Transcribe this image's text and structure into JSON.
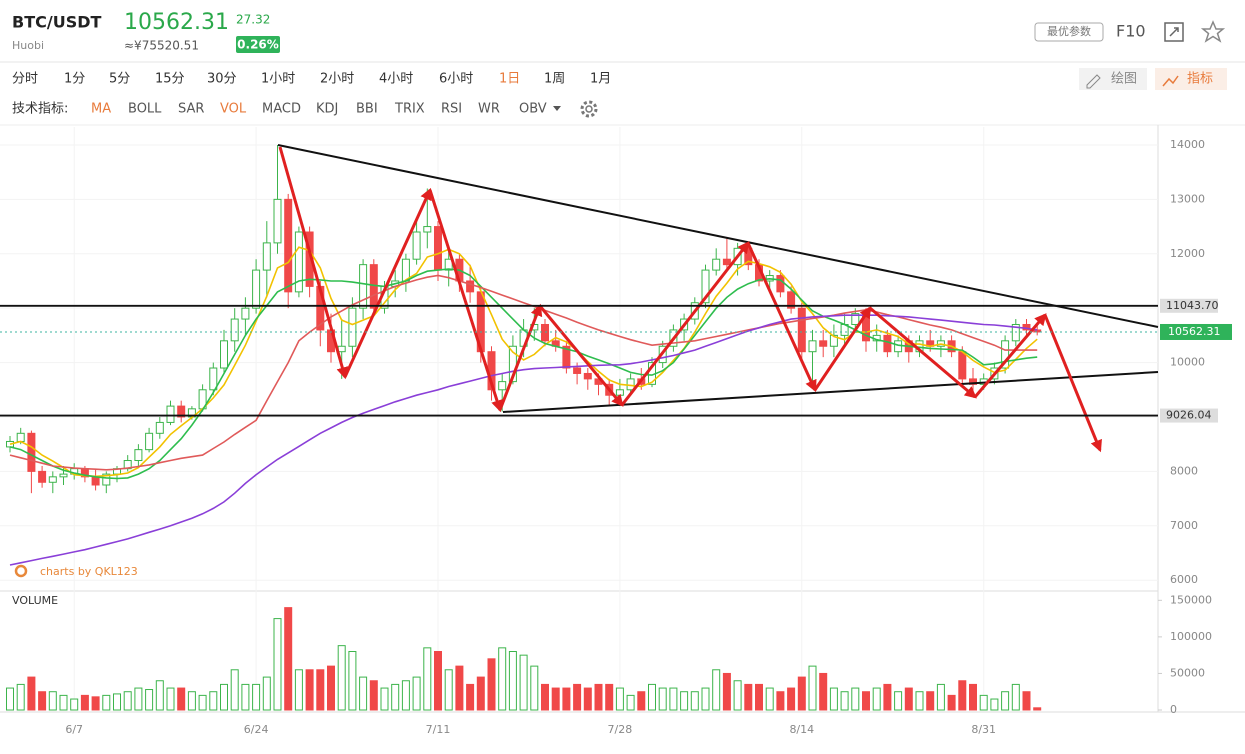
{
  "header": {
    "symbol": "BTC/USDT",
    "exchange": "Huobi",
    "change": "27.32",
    "cny": "≈¥75520.51",
    "change_pct": "0.26%",
    "params": "最优参数",
    "f10": "F10"
  },
  "toolbar": {
    "intervals": [
      "分时",
      "1分",
      "5分",
      "15分",
      "30分",
      "1小时",
      "2小时",
      "4小时",
      "6小时",
      "1日",
      "1周",
      "1月"
    ],
    "draw": "绘图",
    "indicator": "指标"
  },
  "indicators": {
    "label": "技术指标:",
    "items": [
      "MA",
      "BOLL",
      "SAR",
      "VOL",
      "MACD",
      "KDJ",
      "BBI",
      "TRIX",
      "RSI",
      "WR",
      "OBV"
    ]
  },
  "watermark": "charts by QKL123",
  "chart_data": {
    "type": "candlestick",
    "volume_title": "VOLUME",
    "grid": true,
    "up_color": "#3cb44b",
    "down_color": "#f04848",
    "categories": [
      null,
      null,
      null,
      null,
      null,
      null,
      "6/7",
      null,
      null,
      null,
      null,
      null,
      null,
      null,
      null,
      null,
      null,
      null,
      null,
      null,
      null,
      null,
      null,
      "6/24",
      null,
      null,
      null,
      null,
      null,
      null,
      null,
      null,
      null,
      null,
      null,
      null,
      null,
      null,
      null,
      null,
      "7/11",
      null,
      null,
      null,
      null,
      null,
      null,
      null,
      null,
      null,
      null,
      null,
      null,
      null,
      null,
      null,
      null,
      "7/28",
      null,
      null,
      null,
      null,
      null,
      null,
      null,
      null,
      null,
      null,
      null,
      null,
      null,
      null,
      null,
      null,
      "8/14",
      null,
      null,
      null,
      null,
      null,
      null,
      null,
      null,
      null,
      null,
      null,
      null,
      null,
      null,
      null,
      null,
      "8/31",
      null,
      null,
      null,
      null,
      null
    ],
    "open": [
      8450,
      8550,
      8700,
      8000,
      7800,
      7900,
      7950,
      8050,
      7900,
      7750,
      7950,
      8050,
      8200,
      8400,
      8700,
      8900,
      9200,
      9000,
      9150,
      9500,
      9900,
      10400,
      10800,
      11000,
      11700,
      12200,
      13000,
      11300,
      12400,
      11400,
      10600,
      10200,
      10300,
      11000,
      11800,
      11000,
      11400,
      11500,
      11900,
      12400,
      12500,
      11700,
      11900,
      11500,
      11300,
      10200,
      9500,
      9650,
      10300,
      10600,
      10700,
      10400,
      10300,
      9900,
      9800,
      9700,
      9600,
      9400,
      9500,
      9700,
      9600,
      10000,
      10300,
      10600,
      10800,
      11100,
      11700,
      11900,
      11800,
      12100,
      11800,
      11500,
      11600,
      11300,
      11000,
      10200,
      10400,
      10300,
      10500,
      10700,
      10900,
      10400,
      10500,
      10200,
      10400,
      10200,
      10400,
      10300,
      10400,
      10200,
      9700,
      9600,
      9700,
      9900,
      10400,
      10700,
      10600
    ],
    "high": [
      8650,
      8800,
      8750,
      8100,
      8000,
      8100,
      8150,
      8100,
      8050,
      8000,
      8100,
      8300,
      8500,
      8800,
      9000,
      9300,
      9300,
      9200,
      9600,
      10000,
      10600,
      11000,
      11200,
      11900,
      12600,
      14000,
      13100,
      12500,
      12500,
      11500,
      10900,
      10800,
      11200,
      11900,
      11900,
      11500,
      11700,
      12000,
      12600,
      13200,
      12600,
      12100,
      12000,
      11800,
      11400,
      10300,
      9800,
      10500,
      10800,
      11000,
      10800,
      10600,
      10400,
      10000,
      9900,
      9800,
      9700,
      9700,
      9800,
      9900,
      10100,
      10400,
      10700,
      10900,
      11200,
      11800,
      12100,
      12300,
      12200,
      12150,
      11900,
      11700,
      11700,
      11400,
      11100,
      10600,
      10600,
      10700,
      10900,
      11000,
      11000,
      10700,
      10600,
      10500,
      10500,
      10500,
      10600,
      10500,
      10500,
      10300,
      9900,
      9800,
      10000,
      10500,
      10800,
      10800,
      10700
    ],
    "low": [
      8350,
      8500,
      7600,
      7700,
      7600,
      7750,
      7850,
      7800,
      7650,
      7600,
      7800,
      8000,
      8100,
      8350,
      8600,
      8850,
      8900,
      8950,
      9100,
      9400,
      9800,
      10200,
      10500,
      10900,
      11200,
      12000,
      11000,
      11200,
      11200,
      10300,
      10000,
      9700,
      10100,
      10800,
      10900,
      10900,
      11200,
      11300,
      11800,
      12100,
      11500,
      11400,
      11300,
      11100,
      10000,
      9300,
      9100,
      9600,
      10100,
      10400,
      10300,
      10200,
      9800,
      9600,
      9500,
      9400,
      9200,
      9200,
      9400,
      9500,
      9550,
      9900,
      10200,
      10400,
      10700,
      11000,
      11600,
      11700,
      11600,
      11700,
      11400,
      11300,
      11200,
      10900,
      10000,
      9600,
      10100,
      10100,
      10300,
      10600,
      10200,
      10200,
      10100,
      10100,
      10000,
      10100,
      10200,
      10100,
      10100,
      9600,
      9400,
      9500,
      9600,
      9800,
      10300,
      10500,
      10500
    ],
    "close": [
      8550,
      8700,
      8000,
      7800,
      7900,
      7950,
      8050,
      7900,
      7750,
      7950,
      8050,
      8200,
      8400,
      8700,
      8900,
      9200,
      9000,
      9150,
      9500,
      9900,
      10400,
      10800,
      11000,
      11700,
      12200,
      13000,
      11300,
      12400,
      11400,
      10600,
      10200,
      10300,
      11000,
      11800,
      11000,
      11400,
      11500,
      11900,
      12400,
      12500,
      11700,
      11900,
      11500,
      11300,
      10200,
      9500,
      9650,
      10300,
      10600,
      10700,
      10400,
      10300,
      9900,
      9800,
      9700,
      9600,
      9400,
      9500,
      9700,
      9600,
      10000,
      10300,
      10600,
      10800,
      11100,
      11700,
      11900,
      11800,
      12100,
      11800,
      11500,
      11600,
      11300,
      11000,
      10200,
      10400,
      10300,
      10500,
      10700,
      10900,
      10400,
      10500,
      10200,
      10400,
      10200,
      10400,
      10300,
      10400,
      10200,
      9700,
      9600,
      9700,
      9900,
      10400,
      10700,
      10600,
      10562.31
    ],
    "volume": [
      30000,
      35000,
      45000,
      25000,
      25000,
      20000,
      15000,
      20000,
      18000,
      20000,
      22000,
      25000,
      30000,
      28000,
      40000,
      30000,
      30000,
      25000,
      20000,
      25000,
      35000,
      55000,
      35000,
      35000,
      45000,
      125000,
      140000,
      55000,
      55000,
      55000,
      60000,
      88000,
      80000,
      45000,
      40000,
      30000,
      35000,
      40000,
      45000,
      85000,
      80000,
      55000,
      60000,
      35000,
      45000,
      70000,
      85000,
      80000,
      75000,
      60000,
      35000,
      30000,
      30000,
      35000,
      30000,
      35000,
      35000,
      30000,
      20000,
      25000,
      35000,
      30000,
      30000,
      25000,
      25000,
      30000,
      55000,
      50000,
      40000,
      35000,
      35000,
      30000,
      25000,
      30000,
      45000,
      60000,
      50000,
      30000,
      25000,
      30000,
      25000,
      30000,
      35000,
      25000,
      30000,
      25000,
      25000,
      35000,
      20000,
      40000,
      35000,
      20000,
      15000,
      25000,
      35000,
      25000,
      3000
    ],
    "series": [
      {
        "color": "#f2c200",
        "values": [
          8500,
          8550,
          8450,
          8300,
          8190,
          8070,
          7940,
          7920,
          7910,
          7920,
          7940,
          7970,
          8070,
          8260,
          8450,
          8680,
          8840,
          8990,
          9150,
          9350,
          9590,
          9950,
          10320,
          10760,
          11220,
          11740,
          11840,
          12120,
          12060,
          11740,
          11180,
          10780,
          10700,
          10780,
          10860,
          11100,
          11340,
          11520,
          11640,
          11940,
          12000,
          12080,
          12000,
          11780,
          11320,
          10880,
          10430,
          10190,
          10050,
          10150,
          10330,
          10460,
          10380,
          10220,
          10020,
          9840,
          9680,
          9600,
          9580,
          9560,
          9640,
          9820,
          10040,
          10260,
          10560,
          10900,
          11220,
          11460,
          11720,
          11860,
          11820,
          11760,
          11660,
          11440,
          11120,
          10900,
          10640,
          10480,
          10420,
          10560,
          10560,
          10600,
          10540,
          10480,
          10340,
          10340,
          10300,
          10340,
          10300,
          10200,
          10040,
          9920,
          9820,
          9860,
          10060,
          10260,
          10430
        ]
      },
      {
        "color": "#2ebd4e",
        "values": [
          8450,
          8400,
          8300,
          8200,
          8100,
          8020,
          7970,
          7930,
          7900,
          7880,
          7870,
          7880,
          7950,
          8050,
          8200,
          8400,
          8600,
          8850,
          9130,
          9450,
          9800,
          10150,
          10500,
          10800,
          11050,
          11300,
          11400,
          11500,
          11530,
          11520,
          11500,
          11500,
          11480,
          11450,
          11420,
          11400,
          11450,
          11500,
          11600,
          11680,
          11700,
          11720,
          11700,
          11600,
          11400,
          11200,
          11000,
          10800,
          10600,
          10450,
          10350,
          10300,
          10250,
          10200,
          10120,
          10050,
          9980,
          9900,
          9820,
          9780,
          9770,
          9850,
          10000,
          10250,
          10500,
          10750,
          11000,
          11200,
          11350,
          11450,
          11520,
          11540,
          11520,
          11350,
          11150,
          10950,
          10850,
          10780,
          10700,
          10600,
          10500,
          10420,
          10380,
          10320,
          10300,
          10280,
          10260,
          10250,
          10240,
          10230,
          10100,
          9960,
          9980,
          10020,
          10050,
          10080,
          10100
        ]
      },
      {
        "color": "#e05a5a",
        "values": [
          8300,
          8250,
          8200,
          8150,
          8100,
          8080,
          8060,
          8050,
          8040,
          8030,
          8040,
          8060,
          8090,
          8120,
          8160,
          8200,
          8240,
          8270,
          8300,
          8420,
          8540,
          8680,
          8810,
          8940,
          9300,
          9650,
          10000,
          10400,
          10560,
          10700,
          10840,
          10950,
          11060,
          11150,
          11240,
          11320,
          11400,
          11460,
          11520,
          11570,
          11600,
          11560,
          11500,
          11440,
          11380,
          11310,
          11240,
          11170,
          11100,
          11030,
          10960,
          10890,
          10820,
          10740,
          10670,
          10600,
          10540,
          10480,
          10420,
          10370,
          10320,
          10340,
          10360,
          10380,
          10400,
          10440,
          10480,
          10520,
          10560,
          10600,
          10640,
          10680,
          10720,
          10750,
          10780,
          10810,
          10840,
          10870,
          10910,
          10940,
          10970,
          10930,
          10880,
          10840,
          10790,
          10740,
          10690,
          10650,
          10600,
          10530,
          10460,
          10390,
          10320,
          10230,
          10230,
          10230,
          10230
        ]
      },
      {
        "color": "#8a3fd8",
        "values": [
          6280,
          6320,
          6360,
          6400,
          6440,
          6480,
          6520,
          6560,
          6610,
          6660,
          6710,
          6760,
          6820,
          6880,
          6940,
          7000,
          7070,
          7140,
          7220,
          7320,
          7440,
          7600,
          7780,
          7940,
          8080,
          8220,
          8340,
          8460,
          8580,
          8700,
          8800,
          8900,
          8990,
          9070,
          9140,
          9210,
          9280,
          9340,
          9400,
          9450,
          9500,
          9560,
          9610,
          9660,
          9710,
          9760,
          9800,
          9840,
          9870,
          9890,
          9900,
          9910,
          9920,
          9930,
          9940,
          9950,
          9955,
          9960,
          9980,
          10010,
          10050,
          10090,
          10130,
          10180,
          10230,
          10300,
          10370,
          10440,
          10510,
          10580,
          10640,
          10700,
          10750,
          10800,
          10820,
          10840,
          10850,
          10860,
          10870,
          10870,
          10870,
          10870,
          10860,
          10850,
          10840,
          10820,
          10800,
          10780,
          10760,
          10740,
          10720,
          10700,
          10690,
          10670,
          10650,
          10630,
          10600
        ]
      }
    ],
    "last_price": 10562.31,
    "hlines": [
      {
        "value": 11043.7,
        "label": "11043.70"
      },
      {
        "value": 9026.04,
        "label": "9026.04"
      }
    ],
    "ylim": [
      5820,
      14330
    ],
    "yticks": [
      6000,
      7000,
      8000,
      9000,
      10000,
      11000,
      12000,
      13000,
      14000
    ],
    "volume_ylim": [
      0,
      160000
    ],
    "volume_yticks": [
      0,
      50000,
      100000,
      150000
    ]
  }
}
